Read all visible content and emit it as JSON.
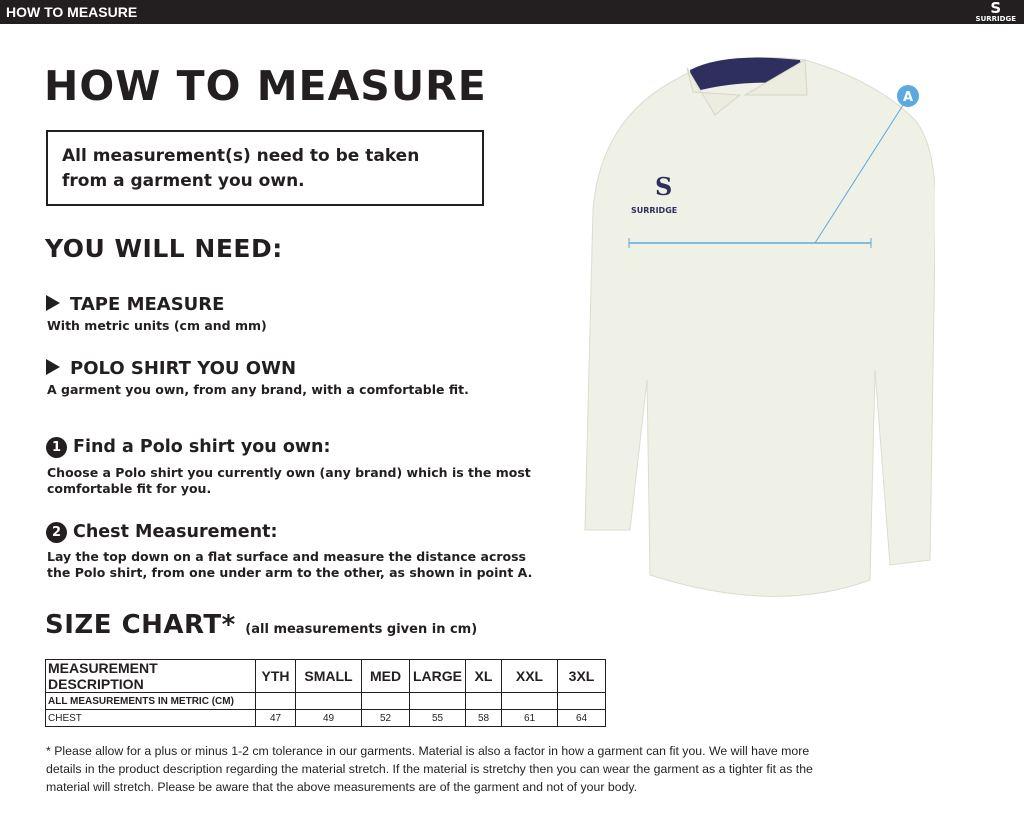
{
  "header": {
    "title": "HOW TO MEASURE",
    "brand": "SURRIDGE",
    "brand_mark": "S"
  },
  "title": "HOW TO MEASURE",
  "notice": "All measurement(s) need to be taken from a garment you own.",
  "you_will_need": {
    "heading": "YOU WILL NEED:",
    "items": [
      {
        "title": "TAPE MEASURE",
        "desc": "With metric units (cm and mm)"
      },
      {
        "title": "POLO SHIRT YOU OWN",
        "desc": "A garment you own, from any brand, with a comfortable fit."
      }
    ]
  },
  "steps": [
    {
      "num": "1",
      "title": "Find a Polo shirt you own:",
      "desc": "Choose a Polo shirt you currently own (any brand) which is the most comfortable fit for you."
    },
    {
      "num": "2",
      "title": "Chest Measurement:",
      "desc": "Lay the top down on a flat surface and measure the distance across the Polo shirt, from one under arm to the other, as shown in point A."
    }
  ],
  "size_chart": {
    "heading": "SIZE CHART",
    "asterisk": "*",
    "note": "(all measurements given in cm)",
    "columns": [
      "MEASUREMENT DESCRIPTION",
      "YTH",
      "SMALL",
      "MED",
      "LARGE",
      "XL",
      "XXL",
      "3XL"
    ],
    "rows": [
      [
        "ALL MEASUREMENTS IN METRIC (CM)",
        "",
        "",
        "",
        "",
        "",
        "",
        ""
      ],
      [
        "CHEST",
        "47",
        "49",
        "52",
        "55",
        "58",
        "61",
        "64"
      ]
    ]
  },
  "footnote": "* Please allow for a plus or minus 1-2 cm tolerance in our garments. Material is also a factor in how a garment can fit you. We will have more details in the product description regarding the material stretch.  If the material is stretchy then you can wear the garment as a tighter fit as the material will stretch.  Please be aware that the above measurements are of the garment and not of your body.",
  "illustration": {
    "point_label": "A",
    "shirt_brand": "SURRIDGE",
    "colors": {
      "shirt": "#f0f1e6",
      "collar": "#2e2f5e",
      "measure_line": "#5aa9e0"
    }
  }
}
